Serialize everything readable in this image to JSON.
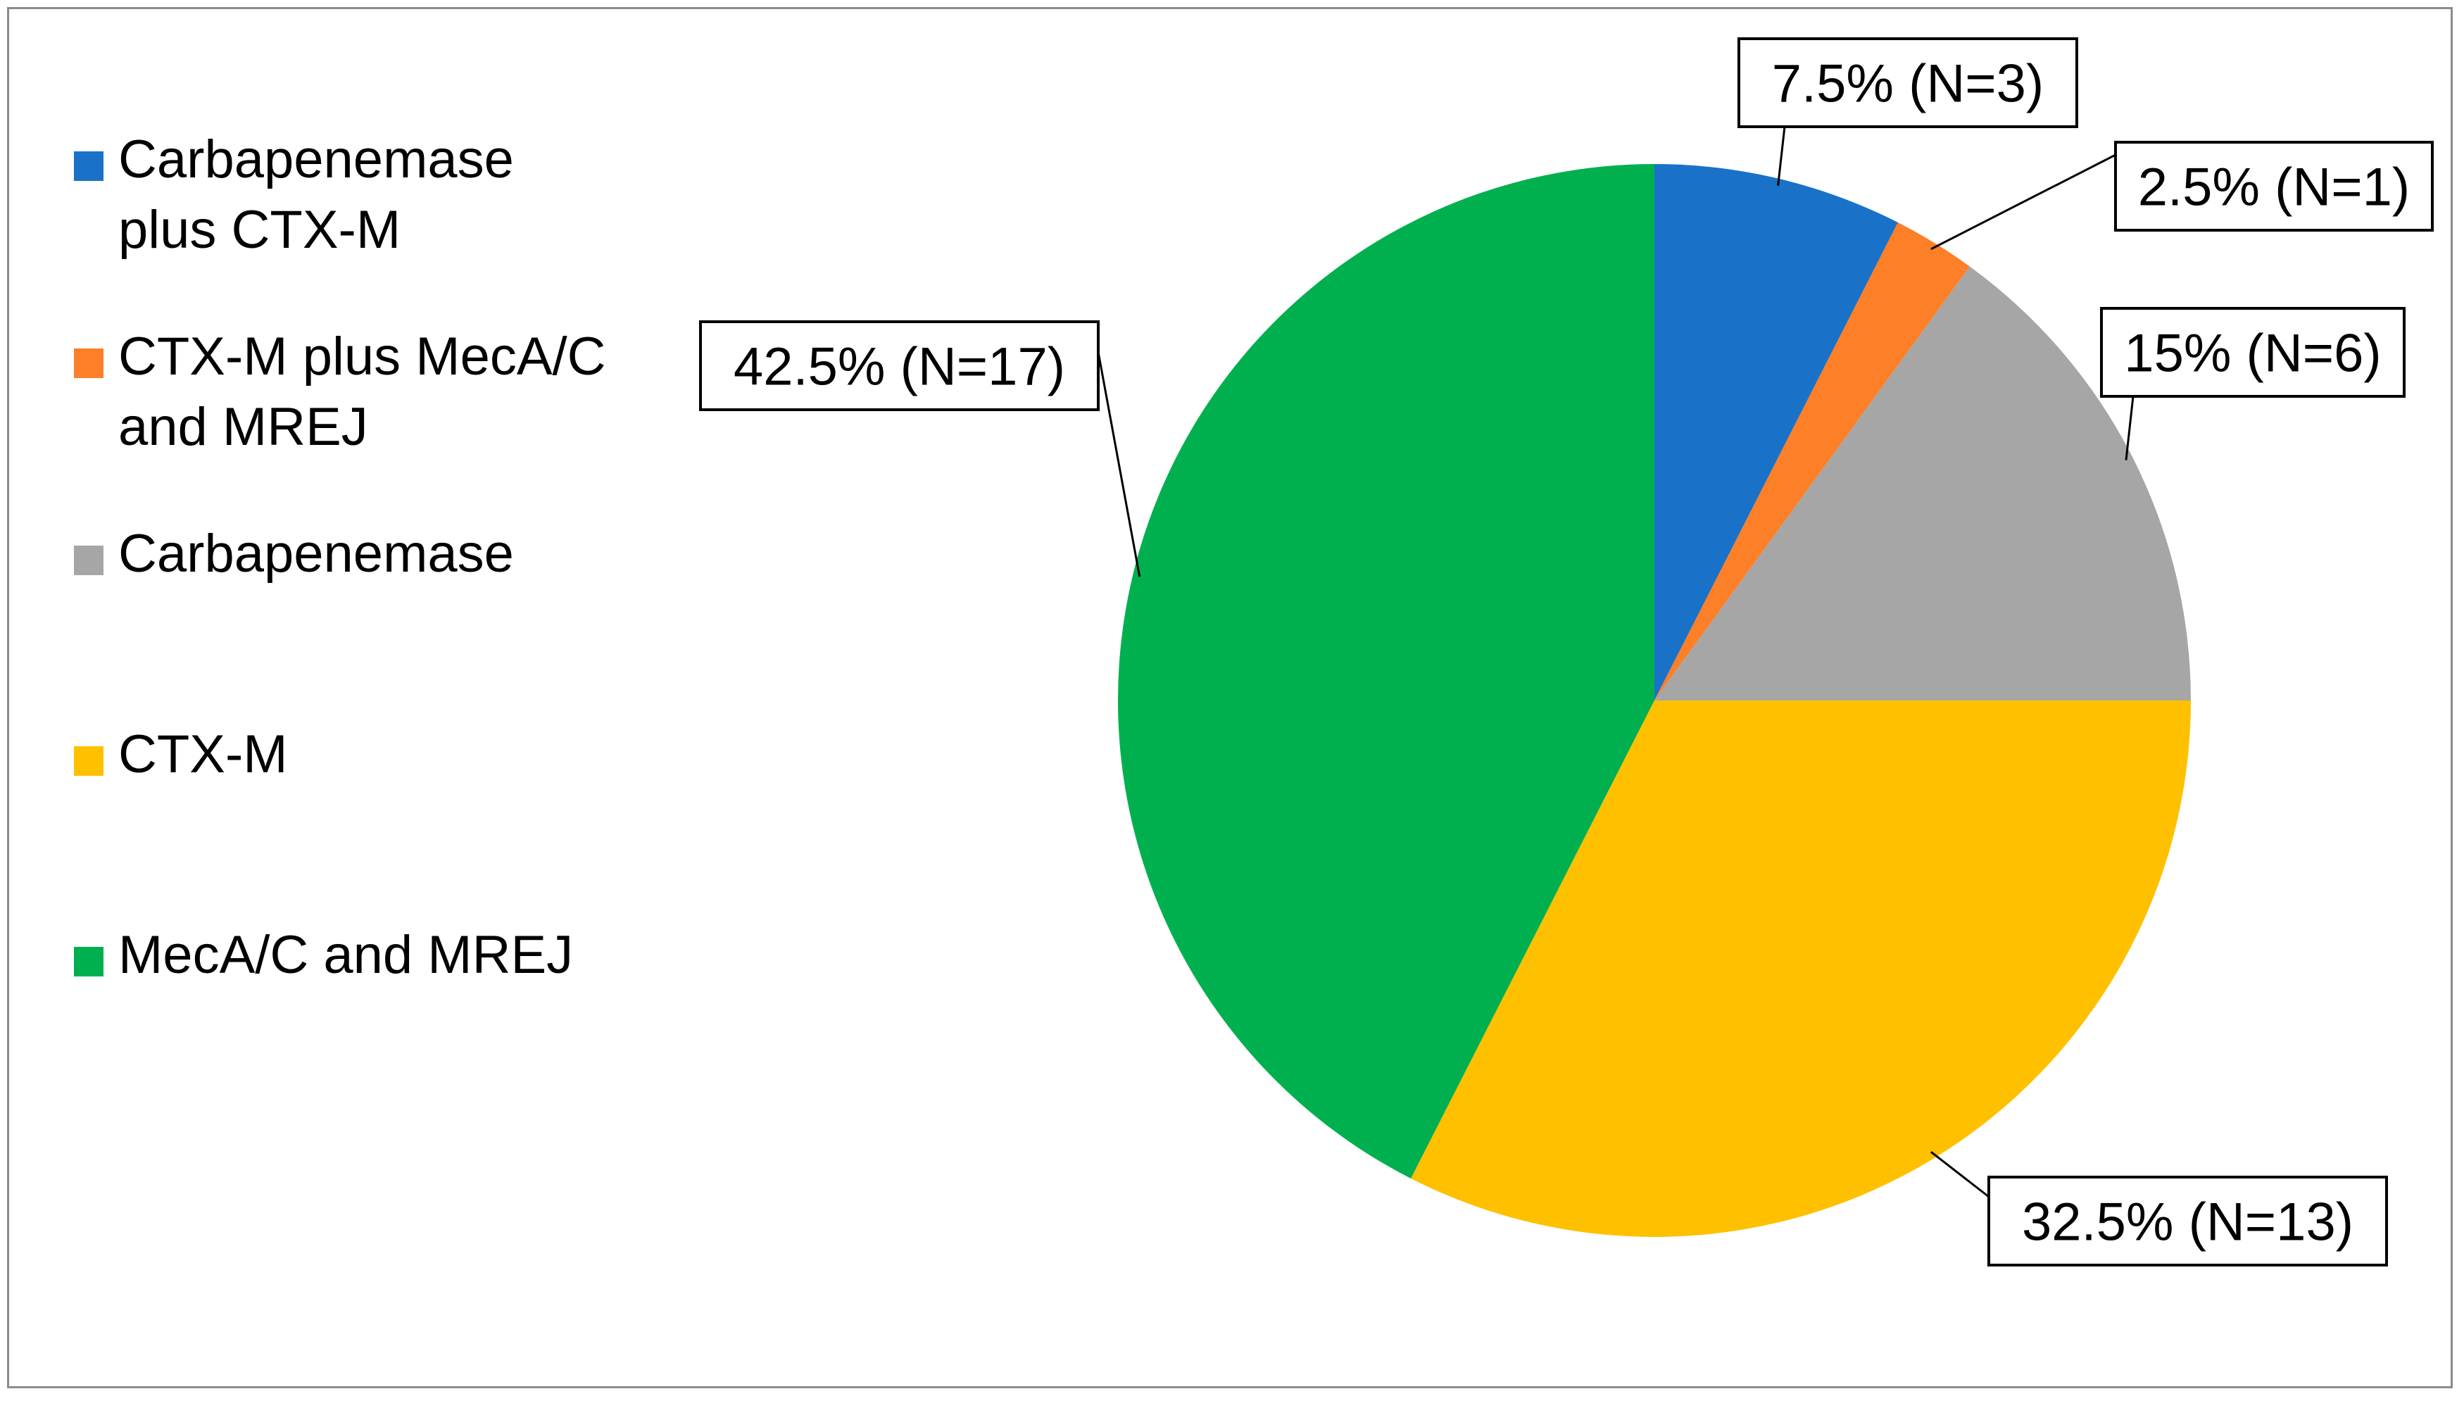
{
  "chart_data": {
    "type": "pie",
    "title": "",
    "start_angle_deg": 0,
    "direction": "clockwise",
    "legend_position": "left",
    "slices": [
      {
        "name": "Carbapenemase plus CTX-M",
        "value": 7.5,
        "count": 3,
        "label": "7.5% (N=3)",
        "color": "#1a72c8"
      },
      {
        "name": "CTX-M plus MecA/C and MREJ",
        "value": 2.5,
        "count": 1,
        "label": "2.5% (N=1)",
        "color": "#fd7f27"
      },
      {
        "name": "Carbapenemase",
        "value": 15,
        "count": 6,
        "label": "15% (N=6)",
        "color": "#a6a6a6"
      },
      {
        "name": "CTX-M",
        "value": 32.5,
        "count": 13,
        "label": "32.5% (N=13)",
        "color": "#ffc000"
      },
      {
        "name": "MecA/C and MREJ",
        "value": 42.5,
        "count": 17,
        "label": "42.5% (N=17)",
        "color": "#00b04f"
      }
    ],
    "legend": [
      {
        "lines": [
          "Carbapenemase",
          "plus CTX-M"
        ],
        "color": "#1a72c8"
      },
      {
        "lines": [
          "CTX-M plus MecA/C",
          "and MREJ"
        ],
        "color": "#fd7f27"
      },
      {
        "lines": [
          "Carbapenemase"
        ],
        "color": "#a6a6a6"
      },
      {
        "lines": [
          "CTX-M"
        ],
        "color": "#ffc000"
      },
      {
        "lines": [
          "MecA/C and MREJ"
        ],
        "color": "#00b04f"
      }
    ]
  }
}
